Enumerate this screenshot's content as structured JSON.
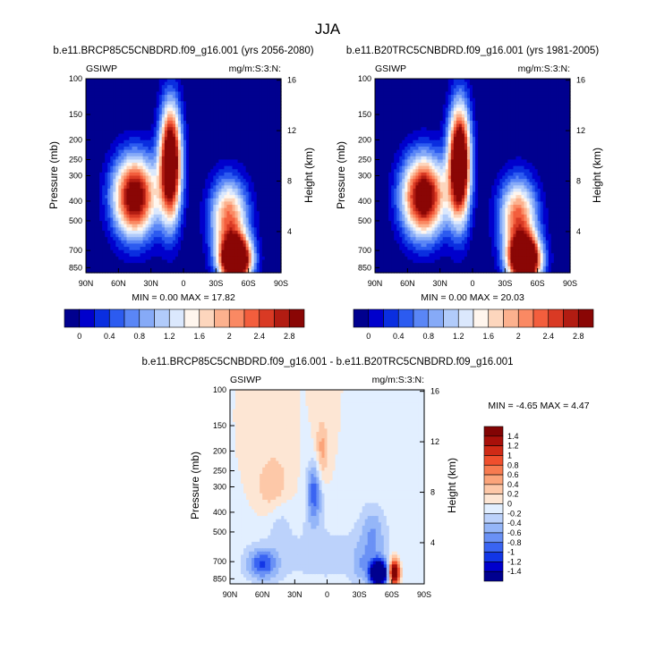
{
  "figure": {
    "title": "JJA"
  },
  "palettes": {
    "abs": [
      "#00008f",
      "#0000cc",
      "#0a2ee0",
      "#2c5bf0",
      "#5a86f6",
      "#86aaf7",
      "#b1cbfa",
      "#dbe8fd",
      "#fff6ee",
      "#fdd6bd",
      "#fcb18e",
      "#fa8963",
      "#f35e3d",
      "#d93a24",
      "#b21c12",
      "#8a0605"
    ],
    "diff": [
      "#00008f",
      "#0000cc",
      "#1236e6",
      "#3a64f2",
      "#6a91f5",
      "#95b6f8",
      "#bcd2fb",
      "#e2efff",
      "#fde6d4",
      "#fdc8a8",
      "#fba47a",
      "#f77b50",
      "#ef4f2d",
      "#cf2a16",
      "#a8100a",
      "#820404"
    ]
  },
  "chart_data": [
    {
      "type": "heatmap",
      "title": "b.e11.BRCP85C5CNBDRD.f09_g16.001 (yrs 2056-2080)",
      "left_label": "GSIWP",
      "right_label": "mg/m:S:3:N:",
      "ylabel": "Pressure (mb)",
      "ylabel_right": "Height (km)",
      "x_ticks": [
        "90N",
        "60N",
        "30N",
        "0",
        "30S",
        "60S",
        "90S"
      ],
      "y_ticks": [
        "100",
        "150",
        "200",
        "250",
        "300",
        "400",
        "500",
        "700",
        "850"
      ],
      "y_right_ticks": [
        "16",
        "12",
        "8",
        "4"
      ],
      "stats": "MIN =   0.00  MAX = 17.82",
      "colorbar_labels": [
        "0",
        "0.4",
        "0.8",
        "1.2",
        "1.6",
        "2",
        "2.4",
        "2.8"
      ],
      "palette": "abs",
      "blobs": [
        {
          "lat": 45,
          "p": 380,
          "slat": 14,
          "sp": 0.32,
          "amp": 3.5
        },
        {
          "lat": 12,
          "p": 260,
          "slat": 7,
          "sp": 0.45,
          "amp": 4.2
        },
        {
          "lat": -48,
          "p": 780,
          "slat": 10,
          "sp": 0.18,
          "amp": 5.0
        },
        {
          "lat": -42,
          "p": 480,
          "slat": 12,
          "sp": 0.3,
          "amp": 2.4
        }
      ]
    },
    {
      "type": "heatmap",
      "title": "b.e11.B20TRC5CNBDRD.f09_g16.001 (yrs 1981-2005)",
      "left_label": "GSIWP",
      "right_label": "mg/m:S:3:N:",
      "ylabel": "Pressure (mb)",
      "ylabel_right": "Height (km)",
      "x_ticks": [
        "90N",
        "60N",
        "30N",
        "0",
        "30S",
        "60S",
        "90S"
      ],
      "y_ticks": [
        "100",
        "150",
        "200",
        "250",
        "300",
        "400",
        "500",
        "700",
        "850"
      ],
      "y_right_ticks": [
        "16",
        "12",
        "8",
        "4"
      ],
      "stats": "MIN =   0.00  MAX = 20.03",
      "colorbar_labels": [
        "0",
        "0.4",
        "0.8",
        "1.2",
        "1.6",
        "2",
        "2.4",
        "2.8"
      ],
      "palette": "abs",
      "blobs": [
        {
          "lat": 45,
          "p": 380,
          "slat": 14,
          "sp": 0.32,
          "amp": 3.6
        },
        {
          "lat": 12,
          "p": 260,
          "slat": 7,
          "sp": 0.45,
          "amp": 4.4
        },
        {
          "lat": -48,
          "p": 780,
          "slat": 10,
          "sp": 0.18,
          "amp": 5.2
        },
        {
          "lat": -42,
          "p": 480,
          "slat": 12,
          "sp": 0.3,
          "amp": 2.5
        }
      ]
    },
    {
      "type": "heatmap",
      "title": "b.e11.BRCP85C5CNBDRD.f09_g16.001 - b.e11.B20TRC5CNBDRD.f09_g16.001",
      "left_label": "GSIWP",
      "right_label": "mg/m:S:3:N:",
      "ylabel": "Pressure (mb)",
      "ylabel_right": "Height (km)",
      "x_ticks": [
        "90N",
        "60N",
        "30N",
        "0",
        "30S",
        "60S",
        "90S"
      ],
      "y_ticks": [
        "100",
        "150",
        "200",
        "250",
        "300",
        "400",
        "500",
        "700",
        "850"
      ],
      "y_right_ticks": [
        "16",
        "12",
        "8",
        "4"
      ],
      "stats": "MIN =  -4.65  MAX =   4.47",
      "colorbar_labels": [
        "1.4",
        "1.2",
        "1",
        "0.8",
        "0.6",
        "0.4",
        "0.2",
        "0",
        "-0.2",
        "-0.4",
        "-0.6",
        "-0.8",
        "-1",
        "-1.2",
        "-1.4"
      ],
      "palette": "diff",
      "blobs": [
        {
          "lat": -48,
          "p": 800,
          "slat": 6,
          "sp": 0.1,
          "amp": -2.4
        },
        {
          "lat": -62,
          "p": 790,
          "slat": 3.5,
          "sp": 0.1,
          "amp": 2.2
        },
        {
          "lat": 60,
          "p": 720,
          "slat": 10,
          "sp": 0.12,
          "amp": -0.9
        },
        {
          "lat": 12,
          "p": 320,
          "slat": 5,
          "sp": 0.25,
          "amp": -0.9
        },
        {
          "lat": 5,
          "p": 200,
          "slat": 4,
          "sp": 0.25,
          "amp": 0.5
        },
        {
          "lat": 50,
          "p": 300,
          "slat": 10,
          "sp": 0.25,
          "amp": 0.45
        },
        {
          "lat": -42,
          "p": 520,
          "slat": 8,
          "sp": 0.25,
          "amp": -0.5
        },
        {
          "lat": -30,
          "p": 720,
          "slat": 5,
          "sp": 0.15,
          "amp": -0.3
        },
        {
          "lat": 0,
          "p": 650,
          "slat": 60,
          "sp": 0.35,
          "amp": -0.25
        },
        {
          "lat": 45,
          "p": 420,
          "slat": 8,
          "sp": 0.2,
          "amp": -0.25
        }
      ]
    }
  ]
}
